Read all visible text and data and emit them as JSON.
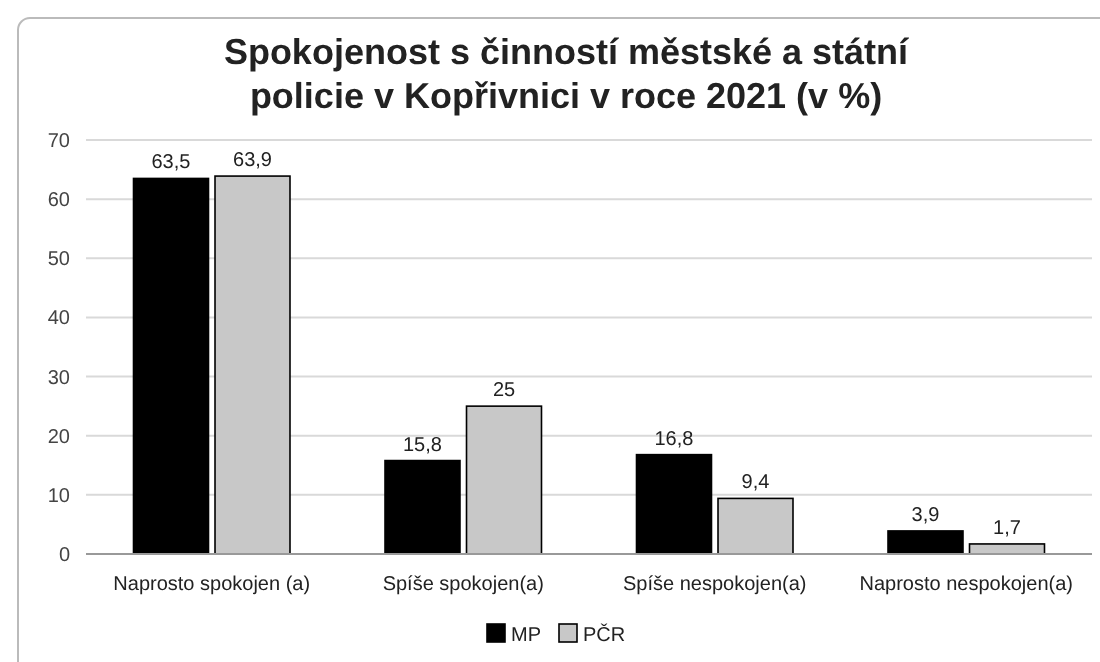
{
  "chart_data": {
    "type": "bar",
    "title": "Spokojenost s činností městské a státní policie v Kopřivnici v roce 2021 (v %)",
    "categories": [
      "Naprosto spokojen (a)",
      "Spíše spokojen(a)",
      "Spíše nespokojen(a)",
      "Naprosto nespokojen(a)"
    ],
    "series": [
      {
        "name": "MP",
        "color": "#000000",
        "values": [
          63.5,
          15.8,
          16.8,
          3.9
        ],
        "value_labels": [
          "63,5",
          "15,8",
          "16,8",
          "3,9"
        ]
      },
      {
        "name": "PČR",
        "color": "#c8c8c8",
        "values": [
          63.9,
          25,
          9.4,
          1.7
        ],
        "value_labels": [
          "63,9",
          "25",
          "9,4",
          "1,7"
        ]
      }
    ],
    "ylim": [
      0,
      70
    ],
    "yticks": [
      0,
      10,
      20,
      30,
      40,
      50,
      60,
      70
    ],
    "grid": "y",
    "legend": "bottom"
  }
}
